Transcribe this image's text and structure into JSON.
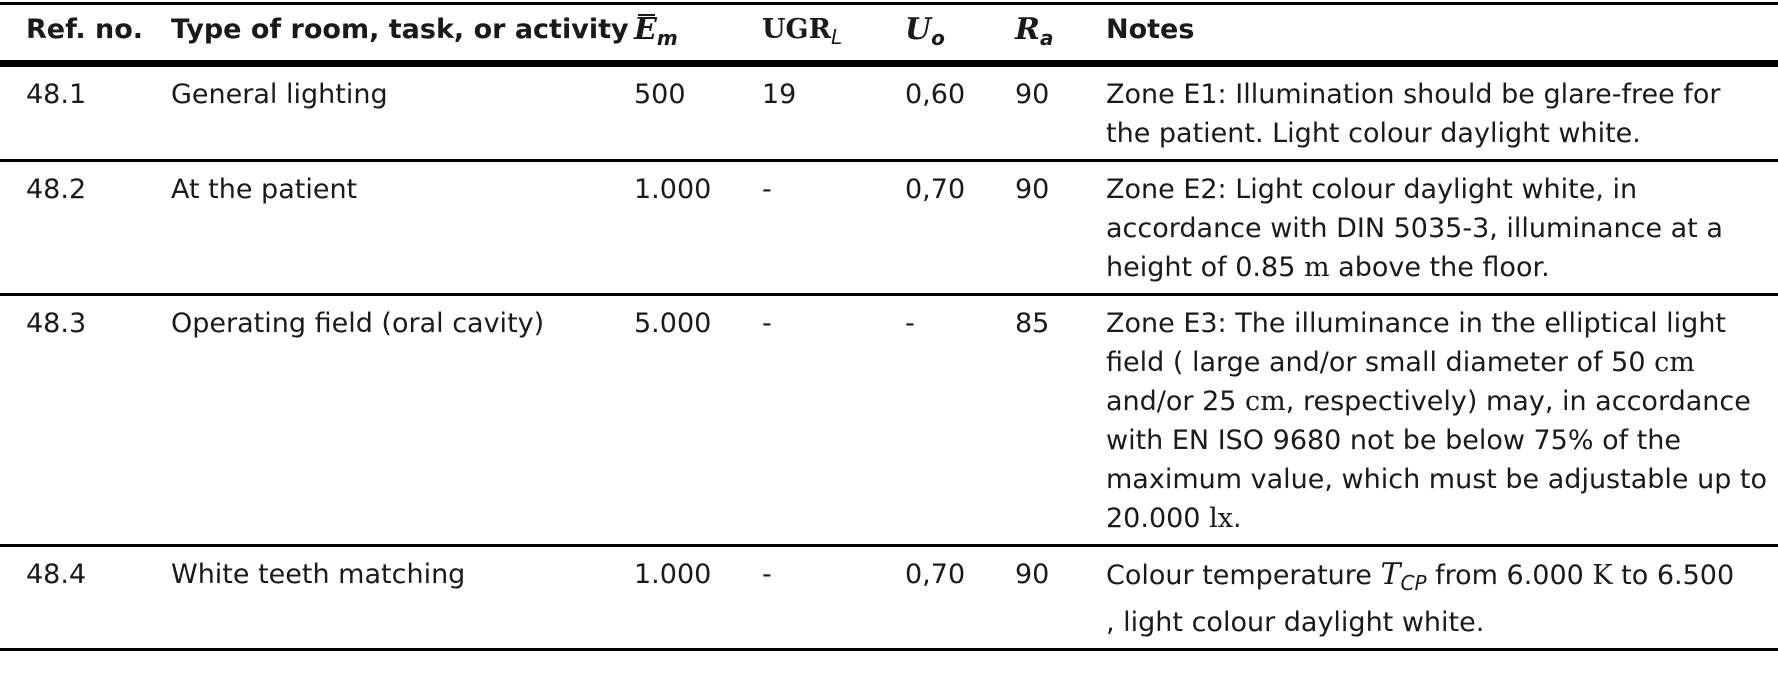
{
  "header": {
    "ref": "Ref. no.",
    "type": "Type of room, task, or activity",
    "em_symbol": "E",
    "em_sub": "m",
    "ugr_main": "UGR",
    "ugr_sub": "L",
    "uo_symbol": "U",
    "uo_sub": "o",
    "ra_symbol": "R",
    "ra_sub": "a",
    "notes": "Notes"
  },
  "rows": [
    {
      "ref": "48.1",
      "type": "General lighting",
      "em": "500",
      "ugr": "19",
      "uo": "0,60",
      "ra": "90",
      "notes": "Zone E1: Illumination should be glare-free for the patient. Light colour daylight white."
    },
    {
      "ref": "48.2",
      "type": "At the patient",
      "em": "1.000",
      "ugr": "-",
      "uo": "0,70",
      "ra": "90",
      "notes_a": "Zone E2: Light colour daylight white, in accordance with DIN 5035-3, illuminance at a height of 0.85 ",
      "notes_unit": "m",
      "notes_b": " above the floor."
    },
    {
      "ref": "48.3",
      "type": "Operating field (oral cavity)",
      "em": "5.000",
      "ugr": "-",
      "uo": "-",
      "ra": "85",
      "notes_a": "Zone E3: The illuminance in the elliptical light field ( large and/or small diameter of 50 ",
      "notes_unit1": "cm",
      "notes_b": " and/or 25 ",
      "notes_unit2": "cm",
      "notes_c": ", respectively) may, in accordance with EN ISO 9680 not be below 75% of the maximum value, which must be adjustable up to 20.000 ",
      "notes_unit3": "lx",
      "notes_d": "."
    },
    {
      "ref": "48.4",
      "type": "White teeth matching",
      "em": "1.000",
      "ugr": "-",
      "uo": "0,70",
      "ra": "90",
      "notes_a": "Colour temperature ",
      "notes_sym": "T",
      "notes_sym_sub": "CP",
      "notes_b": " from 6.000 ",
      "notes_unit": "K",
      "notes_c": " to 6.500    , light colour daylight white."
    }
  ]
}
